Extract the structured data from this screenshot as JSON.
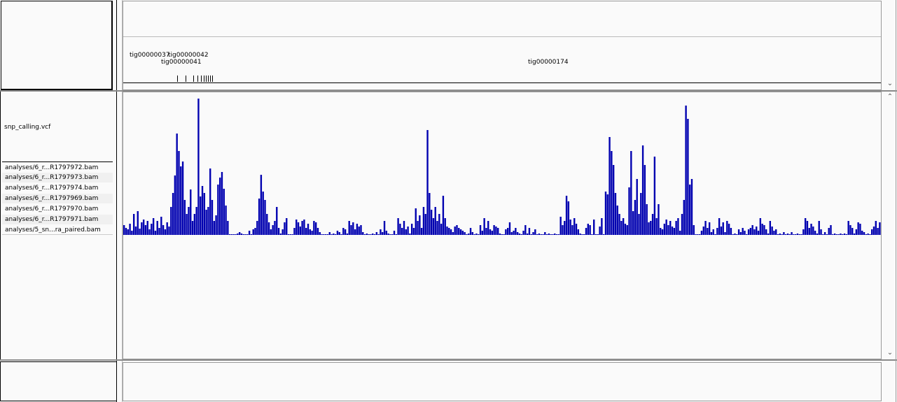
{
  "header": {
    "contigs": [
      {
        "name": "tig00000037",
        "row": 1
      },
      {
        "name": "tig00000042",
        "row": 1
      },
      {
        "name": "tig00000041",
        "row": 2
      },
      {
        "name": "tig00000174",
        "row": 2
      }
    ]
  },
  "tracks": {
    "variant_track": "snp_calling.vcf",
    "alignment_tracks": [
      "analyses/6_r...R1797972.bam",
      "analyses/6_r...R1797973.bam",
      "analyses/6_r...R1797974.bam",
      "analyses/6_r...R1797969.bam",
      "analyses/6_r...R1797970.bam",
      "analyses/6_r...R1797971.bam",
      "analyses/5_sn...ra_paired.bam"
    ]
  },
  "icons": {
    "scroll_up": "chevron-up-icon",
    "scroll_down": "chevron-down-icon"
  },
  "colors": {
    "variant_bar": "#0000b0"
  },
  "variant_density": {
    "type": "bar",
    "values": [
      14,
      10,
      8,
      16,
      6,
      30,
      12,
      34,
      9,
      18,
      22,
      14,
      20,
      8,
      16,
      24,
      6,
      20,
      10,
      26,
      14,
      8,
      18,
      12,
      40,
      60,
      85,
      145,
      120,
      98,
      105,
      50,
      30,
      40,
      65,
      20,
      30,
      40,
      195,
      55,
      70,
      60,
      36,
      40,
      95,
      50,
      20,
      28,
      72,
      82,
      90,
      66,
      42,
      20,
      0,
      0,
      0,
      0,
      2,
      4,
      2,
      0,
      0,
      0,
      6,
      0,
      8,
      10,
      20,
      52,
      86,
      62,
      50,
      30,
      18,
      8,
      14,
      20,
      40,
      10,
      2,
      8,
      18,
      24,
      0,
      0,
      0,
      10,
      22,
      18,
      12,
      20,
      22,
      10,
      16,
      8,
      6,
      20,
      18,
      10,
      4,
      0,
      0,
      0,
      0,
      4,
      0,
      2,
      0,
      6,
      4,
      0,
      10,
      8,
      2,
      20,
      14,
      18,
      8,
      16,
      12,
      14,
      4,
      0,
      2,
      0,
      0,
      2,
      0,
      4,
      0,
      8,
      4,
      20,
      6,
      2,
      0,
      0,
      6,
      0,
      24,
      16,
      10,
      20,
      8,
      12,
      2,
      16,
      10,
      38,
      20,
      28,
      10,
      40,
      30,
      150,
      60,
      36,
      24,
      40,
      20,
      30,
      16,
      56,
      24,
      12,
      10,
      8,
      4,
      12,
      14,
      10,
      8,
      6,
      4,
      0,
      2,
      10,
      4,
      0,
      2,
      0,
      14,
      6,
      24,
      10,
      20,
      8,
      6,
      14,
      12,
      10,
      2,
      0,
      0,
      8,
      10,
      18,
      4,
      6,
      10,
      4,
      2,
      0,
      6,
      14,
      2,
      10,
      0,
      4,
      8,
      0,
      2,
      0,
      0,
      4,
      0,
      2,
      0,
      0,
      2,
      0,
      0,
      26,
      14,
      20,
      56,
      48,
      22,
      14,
      24,
      16,
      8,
      2,
      0,
      0,
      10,
      16,
      14,
      0,
      22,
      0,
      0,
      12,
      24,
      0,
      62,
      58,
      140,
      120,
      100,
      60,
      42,
      30,
      20,
      24,
      16,
      14,
      68,
      120,
      34,
      50,
      80,
      30,
      60,
      128,
      100,
      44,
      18,
      20,
      30,
      112,
      24,
      44,
      10,
      8,
      16,
      22,
      14,
      20,
      12,
      10,
      20,
      24,
      6,
      30,
      50,
      185,
      166,
      72,
      80,
      14,
      0,
      0,
      0,
      6,
      12,
      20,
      10,
      18,
      4,
      8,
      0,
      10,
      24,
      12,
      18,
      4,
      20,
      16,
      10,
      0,
      2,
      0,
      8,
      4,
      10,
      6,
      0,
      8,
      10,
      14,
      8,
      12,
      6,
      24,
      16,
      14,
      8,
      2,
      20,
      12,
      6,
      8,
      0,
      2,
      0,
      4,
      0,
      2,
      0,
      4,
      0,
      0,
      2,
      0,
      0,
      8,
      24,
      20,
      10,
      16,
      12,
      6,
      2,
      20,
      8,
      0,
      4,
      0,
      10,
      14,
      0,
      2,
      0,
      0,
      2,
      0,
      2,
      0,
      20,
      14,
      10,
      2,
      8,
      18,
      16,
      6,
      4,
      0,
      2,
      0,
      8,
      12,
      20,
      10,
      18
    ],
    "ylim": [
      0,
      200
    ]
  }
}
